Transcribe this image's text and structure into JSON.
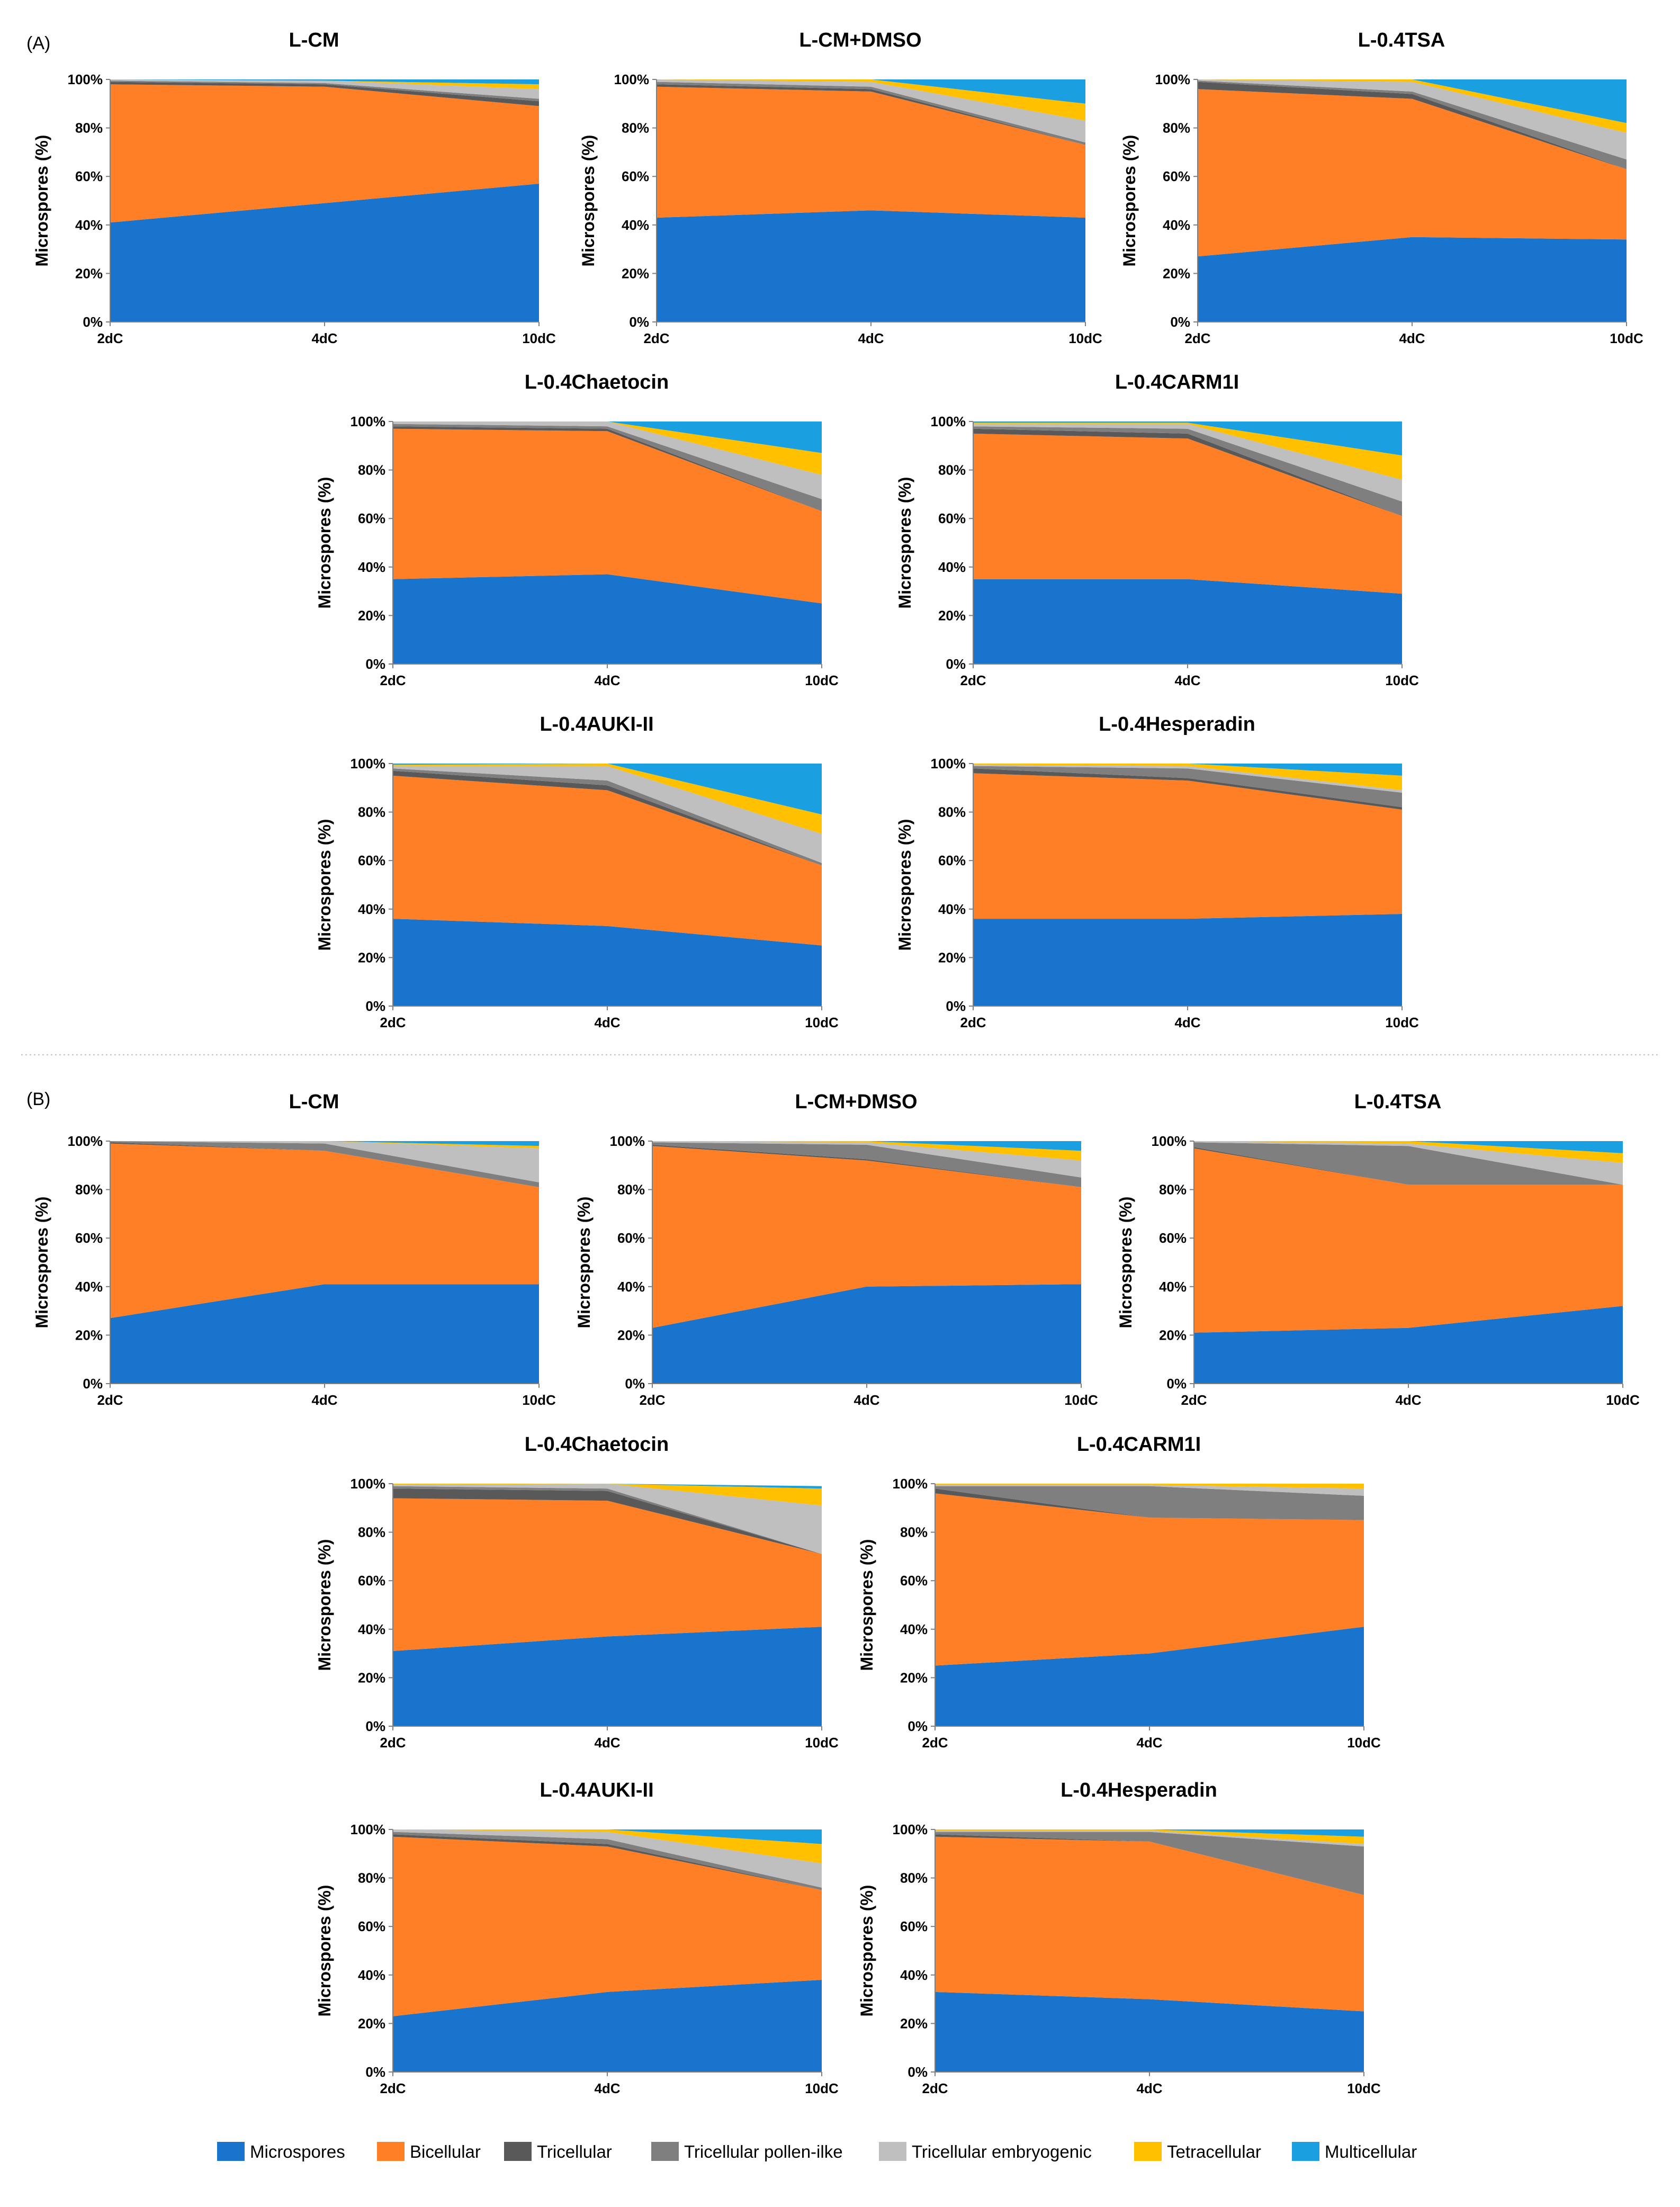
{
  "colors": {
    "Microspores": "#1874CD",
    "Bicellular": "#FF7F27",
    "Tricellular": "#595959",
    "Tricellular pollen-ilke": "#7F7F7F",
    "Tricellular embryogenic": "#BFBFBF",
    "Tetracellular": "#FFC000",
    "Multicellular": "#1AA0E0"
  },
  "legend": {
    "items": [
      "Microspores",
      "Bicellular",
      "Tricellular",
      "Tricellular pollen-ilke",
      "Tricellular embryogenic",
      "Tetracellular",
      "Multicellular"
    ]
  },
  "sections": [
    "(A)",
    "(B)"
  ],
  "axis": {
    "ylabel": "Microspores (%)",
    "yticks": [
      "0%",
      "20%",
      "40%",
      "60%",
      "80%",
      "100%"
    ]
  },
  "chart_data": [
    {
      "panel": "A",
      "title": "L-CM",
      "type": "stacked-area",
      "xlabel": "",
      "ylabel": "Microspores (%)",
      "ylim": [
        0,
        100
      ],
      "categories": [
        "2dC",
        "4dC",
        "10dC"
      ],
      "series": [
        {
          "name": "Microspores",
          "values": [
            41,
            49,
            57
          ]
        },
        {
          "name": "Bicellular",
          "values": [
            57,
            48,
            32
          ]
        },
        {
          "name": "Tricellular",
          "values": [
            1,
            1,
            2
          ]
        },
        {
          "name": "Tricellular pollen-ilke",
          "values": [
            0.5,
            0.5,
            1
          ]
        },
        {
          "name": "Tricellular embryogenic",
          "values": [
            0.5,
            1,
            4
          ]
        },
        {
          "name": "Tetracellular",
          "values": [
            0,
            0,
            2
          ]
        },
        {
          "name": "Multicellular",
          "values": [
            0,
            0.5,
            2
          ]
        }
      ]
    },
    {
      "panel": "A",
      "title": "L-CM+DMSO",
      "type": "stacked-area",
      "xlabel": "",
      "ylabel": "Microspores (%)",
      "ylim": [
        0,
        100
      ],
      "categories": [
        "2dC",
        "4dC",
        "10dC"
      ],
      "series": [
        {
          "name": "Microspores",
          "values": [
            43,
            46,
            43
          ]
        },
        {
          "name": "Bicellular",
          "values": [
            54,
            49,
            30
          ]
        },
        {
          "name": "Tricellular",
          "values": [
            1,
            1,
            0
          ]
        },
        {
          "name": "Tricellular pollen-ilke",
          "values": [
            1,
            1,
            1
          ]
        },
        {
          "name": "Tricellular embryogenic",
          "values": [
            1,
            2,
            9
          ]
        },
        {
          "name": "Tetracellular",
          "values": [
            0,
            1,
            7
          ]
        },
        {
          "name": "Multicellular",
          "values": [
            0,
            0,
            10
          ]
        }
      ]
    },
    {
      "panel": "A",
      "title": "L-0.4TSA",
      "type": "stacked-area",
      "xlabel": "",
      "ylabel": "Microspores (%)",
      "ylim": [
        0,
        100
      ],
      "categories": [
        "2dC",
        "4dC",
        "10dC"
      ],
      "series": [
        {
          "name": "Microspores",
          "values": [
            27,
            35,
            34
          ]
        },
        {
          "name": "Bicellular",
          "values": [
            69,
            57,
            29
          ]
        },
        {
          "name": "Tricellular",
          "values": [
            3,
            2,
            0
          ]
        },
        {
          "name": "Tricellular pollen-ilke",
          "values": [
            0.5,
            1,
            4
          ]
        },
        {
          "name": "Tricellular embryogenic",
          "values": [
            0.5,
            4,
            11
          ]
        },
        {
          "name": "Tetracellular",
          "values": [
            0,
            1,
            4
          ]
        },
        {
          "name": "Multicellular",
          "values": [
            0,
            0,
            18
          ]
        }
      ]
    },
    {
      "panel": "A",
      "title": "L-0.4Chaetocin",
      "type": "stacked-area",
      "xlabel": "",
      "ylabel": "Microspores (%)",
      "ylim": [
        0,
        100
      ],
      "categories": [
        "2dC",
        "4dC",
        "10dC"
      ],
      "series": [
        {
          "name": "Microspores",
          "values": [
            35,
            37,
            25
          ]
        },
        {
          "name": "Bicellular",
          "values": [
            62,
            59,
            38
          ]
        },
        {
          "name": "Tricellular",
          "values": [
            1,
            1,
            0
          ]
        },
        {
          "name": "Tricellular pollen-ilke",
          "values": [
            1,
            1,
            5
          ]
        },
        {
          "name": "Tricellular embryogenic",
          "values": [
            1,
            2,
            10
          ]
        },
        {
          "name": "Tetracellular",
          "values": [
            0,
            0,
            9
          ]
        },
        {
          "name": "Multicellular",
          "values": [
            0,
            0,
            13
          ]
        }
      ]
    },
    {
      "panel": "A",
      "title": "L-0.4CARM1I",
      "type": "stacked-area",
      "xlabel": "",
      "ylabel": "Microspores (%)",
      "ylim": [
        0,
        100
      ],
      "categories": [
        "2dC",
        "4dC",
        "10dC"
      ],
      "series": [
        {
          "name": "Microspores",
          "values": [
            35,
            35,
            29
          ]
        },
        {
          "name": "Bicellular",
          "values": [
            60,
            58,
            32
          ]
        },
        {
          "name": "Tricellular",
          "values": [
            2,
            2,
            0
          ]
        },
        {
          "name": "Tricellular pollen-ilke",
          "values": [
            1,
            2,
            6
          ]
        },
        {
          "name": "Tricellular embryogenic",
          "values": [
            1,
            2,
            9
          ]
        },
        {
          "name": "Tetracellular",
          "values": [
            0.5,
            0.5,
            10
          ]
        },
        {
          "name": "Multicellular",
          "values": [
            0.5,
            0.5,
            14
          ]
        }
      ]
    },
    {
      "panel": "A",
      "title": "L-0.4AUKI-II",
      "type": "stacked-area",
      "xlabel": "",
      "ylabel": "Microspores (%)",
      "ylim": [
        0,
        100
      ],
      "categories": [
        "2dC",
        "4dC",
        "10dC"
      ],
      "series": [
        {
          "name": "Microspores",
          "values": [
            36,
            33,
            25
          ]
        },
        {
          "name": "Bicellular",
          "values": [
            59,
            56,
            33
          ]
        },
        {
          "name": "Tricellular",
          "values": [
            2,
            2,
            0
          ]
        },
        {
          "name": "Tricellular pollen-ilke",
          "values": [
            1,
            2,
            1
          ]
        },
        {
          "name": "Tricellular embryogenic",
          "values": [
            1,
            6,
            12
          ]
        },
        {
          "name": "Tetracellular",
          "values": [
            0.5,
            1,
            8
          ]
        },
        {
          "name": "Multicellular",
          "values": [
            0.5,
            0,
            21
          ]
        }
      ]
    },
    {
      "panel": "A",
      "title": "L-0.4Hesperadin",
      "type": "stacked-area",
      "xlabel": "",
      "ylabel": "Microspores (%)",
      "ylim": [
        0,
        100
      ],
      "categories": [
        "2dC",
        "4dC",
        "10dC"
      ],
      "series": [
        {
          "name": "Microspores",
          "values": [
            36,
            36,
            38
          ]
        },
        {
          "name": "Bicellular",
          "values": [
            60,
            57,
            43
          ]
        },
        {
          "name": "Tricellular",
          "values": [
            2,
            1,
            1
          ]
        },
        {
          "name": "Tricellular pollen-ilke",
          "values": [
            1,
            4,
            6
          ]
        },
        {
          "name": "Tricellular embryogenic",
          "values": [
            0.5,
            1,
            1
          ]
        },
        {
          "name": "Tetracellular",
          "values": [
            0.5,
            1,
            6
          ]
        },
        {
          "name": "Multicellular",
          "values": [
            0,
            0,
            5
          ]
        }
      ]
    },
    {
      "panel": "B",
      "title": "L-CM",
      "type": "stacked-area",
      "xlabel": "",
      "ylabel": "Microspores (%)",
      "ylim": [
        0,
        100
      ],
      "categories": [
        "2dC",
        "4dC",
        "10dC"
      ],
      "series": [
        {
          "name": "Microspores",
          "values": [
            27,
            41,
            41
          ]
        },
        {
          "name": "Bicellular",
          "values": [
            72,
            55,
            40
          ]
        },
        {
          "name": "Tricellular",
          "values": [
            0.5,
            0,
            0
          ]
        },
        {
          "name": "Tricellular pollen-ilke",
          "values": [
            0.5,
            3,
            2
          ]
        },
        {
          "name": "Tricellular embryogenic",
          "values": [
            0,
            1,
            14
          ]
        },
        {
          "name": "Tetracellular",
          "values": [
            0,
            0,
            1
          ]
        },
        {
          "name": "Multicellular",
          "values": [
            0,
            0,
            2
          ]
        }
      ]
    },
    {
      "panel": "B",
      "title": "L-CM+DMSO",
      "type": "stacked-area",
      "xlabel": "",
      "ylabel": "Microspores (%)",
      "ylim": [
        0,
        100
      ],
      "categories": [
        "2dC",
        "4dC",
        "10dC"
      ],
      "series": [
        {
          "name": "Microspores",
          "values": [
            23,
            40,
            41
          ]
        },
        {
          "name": "Bicellular",
          "values": [
            75,
            52,
            40
          ]
        },
        {
          "name": "Tricellular",
          "values": [
            0.5,
            0.5,
            0
          ]
        },
        {
          "name": "Tricellular pollen-ilke",
          "values": [
            1,
            6,
            4
          ]
        },
        {
          "name": "Tricellular embryogenic",
          "values": [
            0.5,
            1,
            7
          ]
        },
        {
          "name": "Tetracellular",
          "values": [
            0,
            0.5,
            4
          ]
        },
        {
          "name": "Multicellular",
          "values": [
            0,
            0,
            4
          ]
        }
      ]
    },
    {
      "panel": "B",
      "title": "L-0.4TSA",
      "type": "stacked-area",
      "xlabel": "",
      "ylabel": "Microspores (%)",
      "ylim": [
        0,
        100
      ],
      "categories": [
        "2dC",
        "4dC",
        "10dC"
      ],
      "series": [
        {
          "name": "Microspores",
          "values": [
            21,
            23,
            32
          ]
        },
        {
          "name": "Bicellular",
          "values": [
            76,
            59,
            50
          ]
        },
        {
          "name": "Tricellular",
          "values": [
            0.5,
            0,
            0
          ]
        },
        {
          "name": "Tricellular pollen-ilke",
          "values": [
            2,
            16,
            0
          ]
        },
        {
          "name": "Tricellular embryogenic",
          "values": [
            0.5,
            1,
            9
          ]
        },
        {
          "name": "Tetracellular",
          "values": [
            0,
            1,
            4
          ]
        },
        {
          "name": "Multicellular",
          "values": [
            0,
            0,
            5
          ]
        }
      ]
    },
    {
      "panel": "B",
      "title": "L-0.4Chaetocin",
      "type": "stacked-area",
      "xlabel": "",
      "ylabel": "Microspores (%)",
      "ylim": [
        0,
        100
      ],
      "categories": [
        "2dC",
        "4dC",
        "10dC"
      ],
      "series": [
        {
          "name": "Microspores",
          "values": [
            31,
            37,
            41
          ]
        },
        {
          "name": "Bicellular",
          "values": [
            63,
            56,
            30
          ]
        },
        {
          "name": "Tricellular",
          "values": [
            4,
            4,
            0
          ]
        },
        {
          "name": "Tricellular pollen-ilke",
          "values": [
            1,
            1,
            0
          ]
        },
        {
          "name": "Tricellular embryogenic",
          "values": [
            0.5,
            2,
            20
          ]
        },
        {
          "name": "Tetracellular",
          "values": [
            0.5,
            0,
            7
          ]
        },
        {
          "name": "Multicellular",
          "values": [
            0,
            0,
            1
          ]
        }
      ]
    },
    {
      "panel": "B",
      "title": "L-0.4CARM1I",
      "type": "stacked-area",
      "xlabel": "",
      "ylabel": "Microspores (%)",
      "ylim": [
        0,
        100
      ],
      "categories": [
        "2dC",
        "4dC",
        "10dC"
      ],
      "series": [
        {
          "name": "Microspores",
          "values": [
            25,
            30,
            41
          ]
        },
        {
          "name": "Bicellular",
          "values": [
            71,
            56,
            44
          ]
        },
        {
          "name": "Tricellular",
          "values": [
            2,
            0,
            0
          ]
        },
        {
          "name": "Tricellular pollen-ilke",
          "values": [
            1,
            13,
            10
          ]
        },
        {
          "name": "Tricellular embryogenic",
          "values": [
            0.5,
            0.5,
            3
          ]
        },
        {
          "name": "Tetracellular",
          "values": [
            0.5,
            0.5,
            2
          ]
        },
        {
          "name": "Multicellular",
          "values": [
            0,
            0,
            0
          ]
        }
      ]
    },
    {
      "panel": "B",
      "title": "L-0.4AUKI-II",
      "type": "stacked-area",
      "xlabel": "",
      "ylabel": "Microspores (%)",
      "ylim": [
        0,
        100
      ],
      "categories": [
        "2dC",
        "4dC",
        "10dC"
      ],
      "series": [
        {
          "name": "Microspores",
          "values": [
            23,
            33,
            38
          ]
        },
        {
          "name": "Bicellular",
          "values": [
            74,
            60,
            37
          ]
        },
        {
          "name": "Tricellular",
          "values": [
            1,
            1,
            0
          ]
        },
        {
          "name": "Tricellular pollen-ilke",
          "values": [
            1,
            2,
            1
          ]
        },
        {
          "name": "Tricellular embryogenic",
          "values": [
            1,
            3,
            10
          ]
        },
        {
          "name": "Tetracellular",
          "values": [
            0,
            1,
            8
          ]
        },
        {
          "name": "Multicellular",
          "values": [
            0,
            0,
            6
          ]
        }
      ]
    },
    {
      "panel": "B",
      "title": "L-0.4Hesperadin",
      "type": "stacked-area",
      "xlabel": "",
      "ylabel": "Microspores (%)",
      "ylim": [
        0,
        100
      ],
      "categories": [
        "2dC",
        "4dC",
        "10dC"
      ],
      "series": [
        {
          "name": "Microspores",
          "values": [
            33,
            30,
            25
          ]
        },
        {
          "name": "Bicellular",
          "values": [
            64,
            65,
            48
          ]
        },
        {
          "name": "Tricellular",
          "values": [
            1,
            0,
            0
          ]
        },
        {
          "name": "Tricellular pollen-ilke",
          "values": [
            1,
            4,
            20
          ]
        },
        {
          "name": "Tricellular embryogenic",
          "values": [
            0.5,
            0.5,
            1
          ]
        },
        {
          "name": "Tetracellular",
          "values": [
            0.5,
            0.5,
            3
          ]
        },
        {
          "name": "Multicellular",
          "values": [
            0,
            0,
            3
          ]
        }
      ]
    }
  ]
}
